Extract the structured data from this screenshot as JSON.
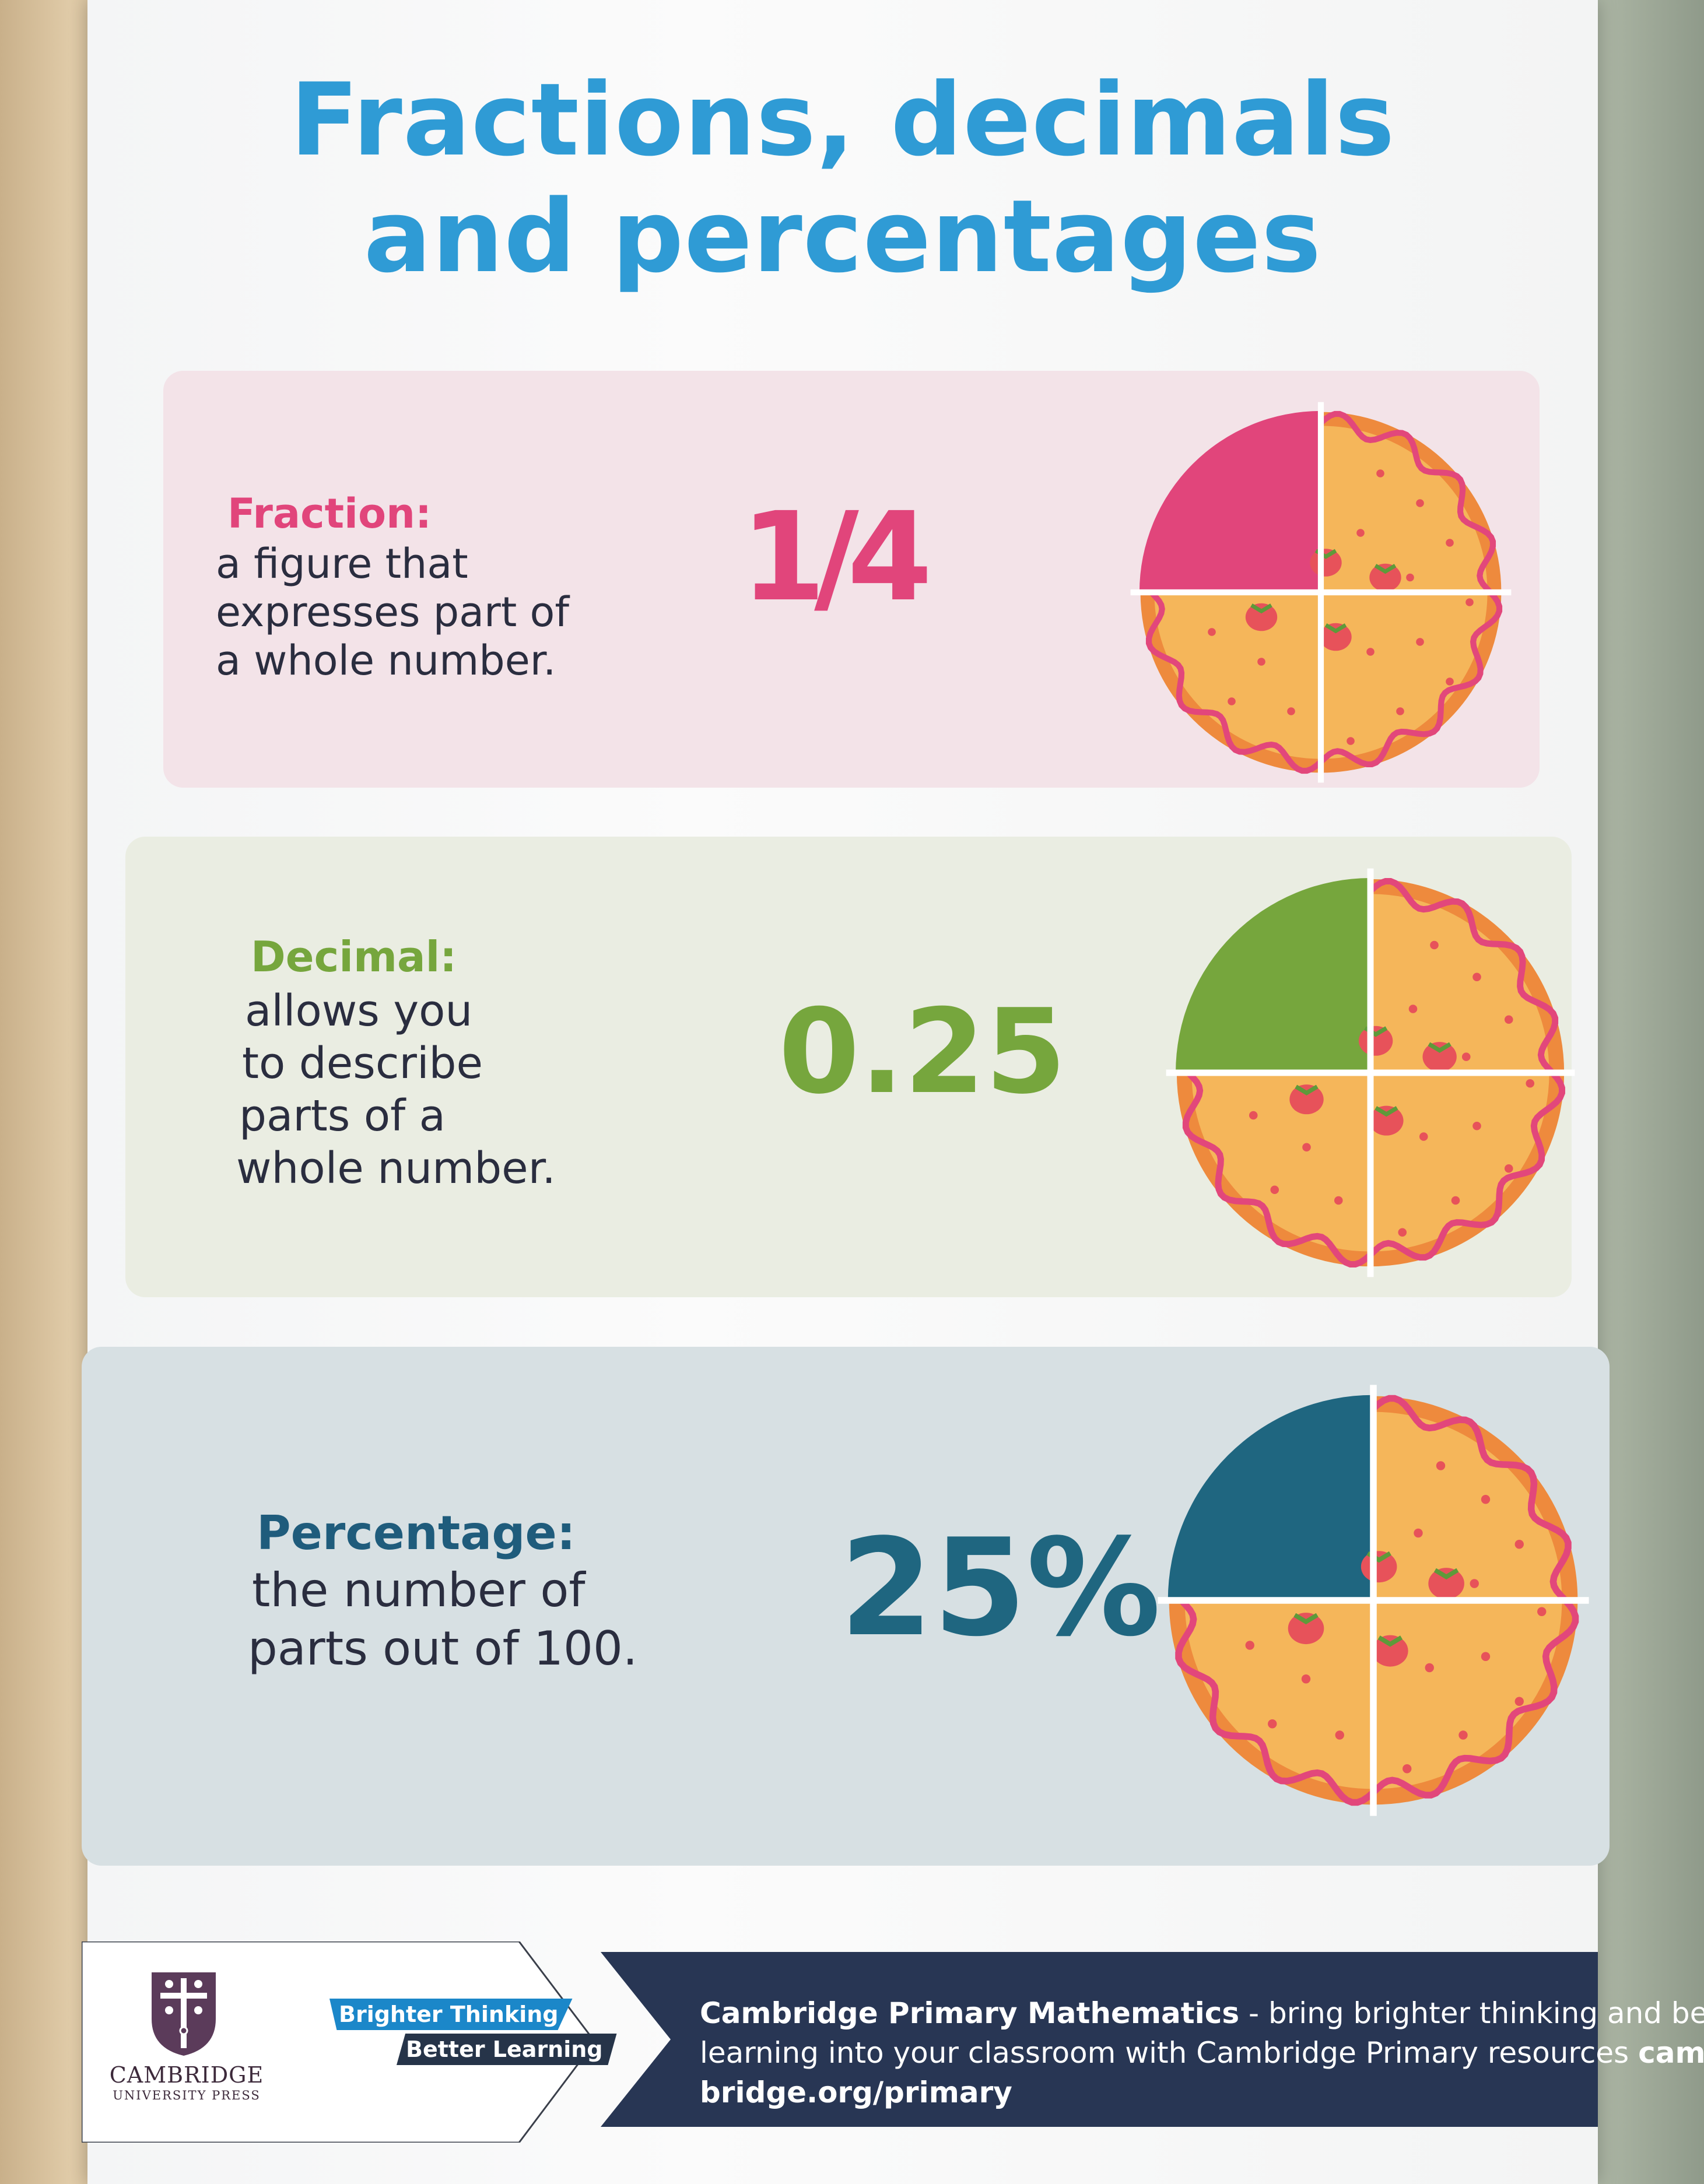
{
  "title": {
    "line1": "Fractions, decimals",
    "line2": "and percentages"
  },
  "sections": {
    "fraction": {
      "label": "Fraction:",
      "desc": [
        "a figure that",
        "expresses part of",
        "a whole number."
      ],
      "value": "1/4",
      "color": "#e1457b",
      "shaded_fraction": 0.25
    },
    "decimal": {
      "label": "Decimal:",
      "desc": [
        "allows you",
        "to describe",
        "parts of a",
        "whole number."
      ],
      "value": "0.25",
      "color": "#76a63d",
      "shaded_fraction": 0.25
    },
    "percentage": {
      "label": "Percentage:",
      "desc": [
        "the number of",
        "parts out of 100."
      ],
      "value": "25%",
      "color": "#1f6680",
      "shaded_fraction": 0.25
    }
  },
  "footer": {
    "publisher_name": "CAMBRIDGE",
    "publisher_sub": "UNIVERSITY PRESS",
    "tagline_1": "Brighter Thinking",
    "tagline_2": "Better Learning",
    "promo_bold": "Cambridge Primary Mathematics",
    "promo_line1": " - bring brighter thinking and better",
    "promo_line2": "learning into your classroom with Cambridge Primary resources ",
    "promo_line2_bold": "cam-",
    "promo_line3_bold": "bridge.org/primary"
  },
  "colors": {
    "title": "#2f9bd5",
    "pie_crust": "#f5b65a",
    "pie_edge": "#ee8a3d",
    "pie_scallop": "#e2477b",
    "strawberry": "#e7525a",
    "footer_navy": "#283654"
  }
}
